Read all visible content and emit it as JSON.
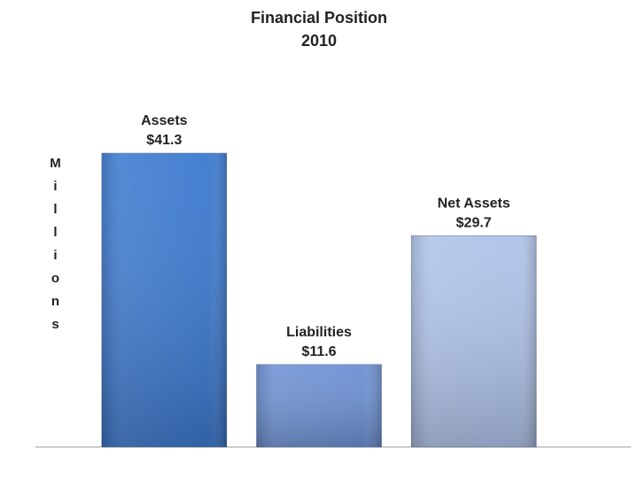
{
  "chart_data": {
    "type": "bar",
    "title": "Financial Position",
    "subtitle": "2010",
    "y_label": "Millions",
    "categories": [
      "Assets",
      "Liabilities",
      "Net Assets"
    ],
    "values": [
      41.3,
      11.6,
      29.7
    ],
    "value_labels": [
      "$41.3",
      "$11.6",
      "$29.7"
    ],
    "colors": [
      "#3b79cf",
      "#6c90d3",
      "#aec2e8"
    ]
  }
}
